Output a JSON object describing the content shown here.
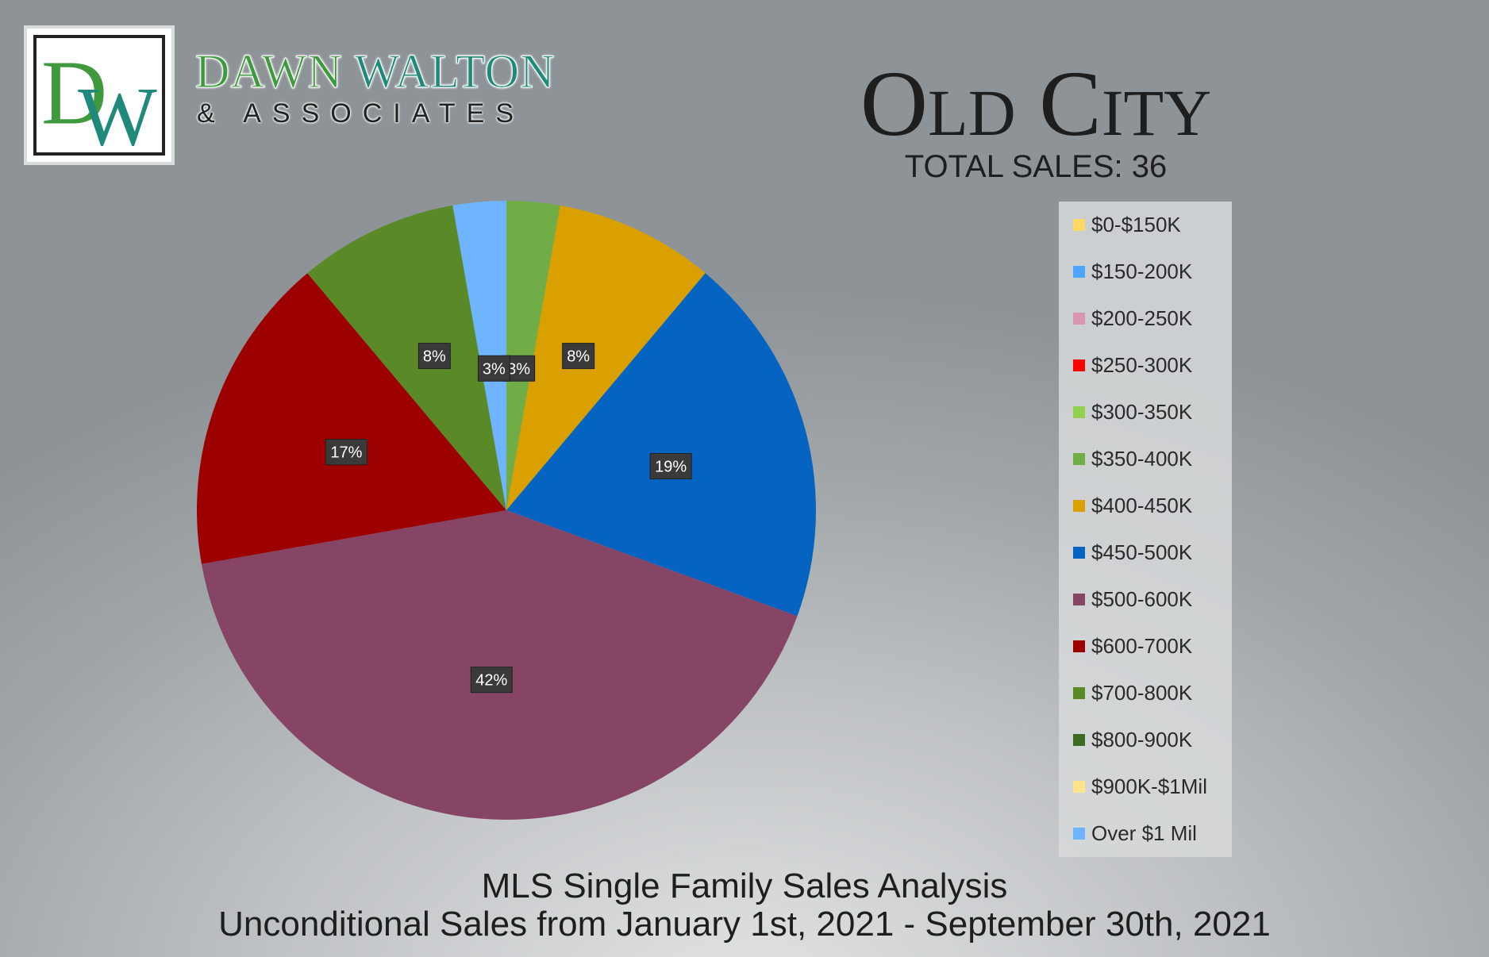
{
  "brand": {
    "name_first": "DAWN ",
    "name_second": "WALTON",
    "sub": "& ASSOCIATES",
    "logo_letters": "DW"
  },
  "header": {
    "title": "Old City",
    "subtitle": "TOTAL SALES: 36"
  },
  "footer": {
    "line1": "MLS Single Family Sales Analysis",
    "line2": "Unconditional Sales from January 1st, 2021 - September 30th, 2021"
  },
  "chart_data": {
    "type": "pie",
    "legend_position": "right",
    "slices": [
      {
        "label": "$0-$150K",
        "value": 0,
        "percent_label": "",
        "color": "#ffd966"
      },
      {
        "label": "$150-200K",
        "value": 0,
        "percent_label": "",
        "color": "#4ea7ff"
      },
      {
        "label": "$200-250K",
        "value": 0,
        "percent_label": "",
        "color": "#d896b4"
      },
      {
        "label": "$250-300K",
        "value": 0,
        "percent_label": "",
        "color": "#ff0000"
      },
      {
        "label": "$300-350K",
        "value": 0,
        "percent_label": "",
        "color": "#92d050"
      },
      {
        "label": "$350-400K",
        "value": 1,
        "percent_label": "3%",
        "color": "#70ad47"
      },
      {
        "label": "$400-450K",
        "value": 3,
        "percent_label": "8%",
        "color": "#d9a000"
      },
      {
        "label": "$450-500K",
        "value": 7,
        "percent_label": "19%",
        "color": "#0563c1"
      },
      {
        "label": "$500-600K",
        "value": 15,
        "percent_label": "42%",
        "color": "#874566"
      },
      {
        "label": "$600-700K",
        "value": 6,
        "percent_label": "17%",
        "color": "#9c0000"
      },
      {
        "label": "$700-800K",
        "value": 3,
        "percent_label": "8%",
        "color": "#5a8a28"
      },
      {
        "label": "$800-900K",
        "value": 0,
        "percent_label": "",
        "color": "#3d6b22"
      },
      {
        "label": "$900K-$1Mil",
        "value": 0,
        "percent_label": "",
        "color": "#ffe48a"
      },
      {
        "label": "Over $1 Mil",
        "value": 1,
        "percent_label": "3%",
        "color": "#6fb4ff"
      }
    ]
  }
}
